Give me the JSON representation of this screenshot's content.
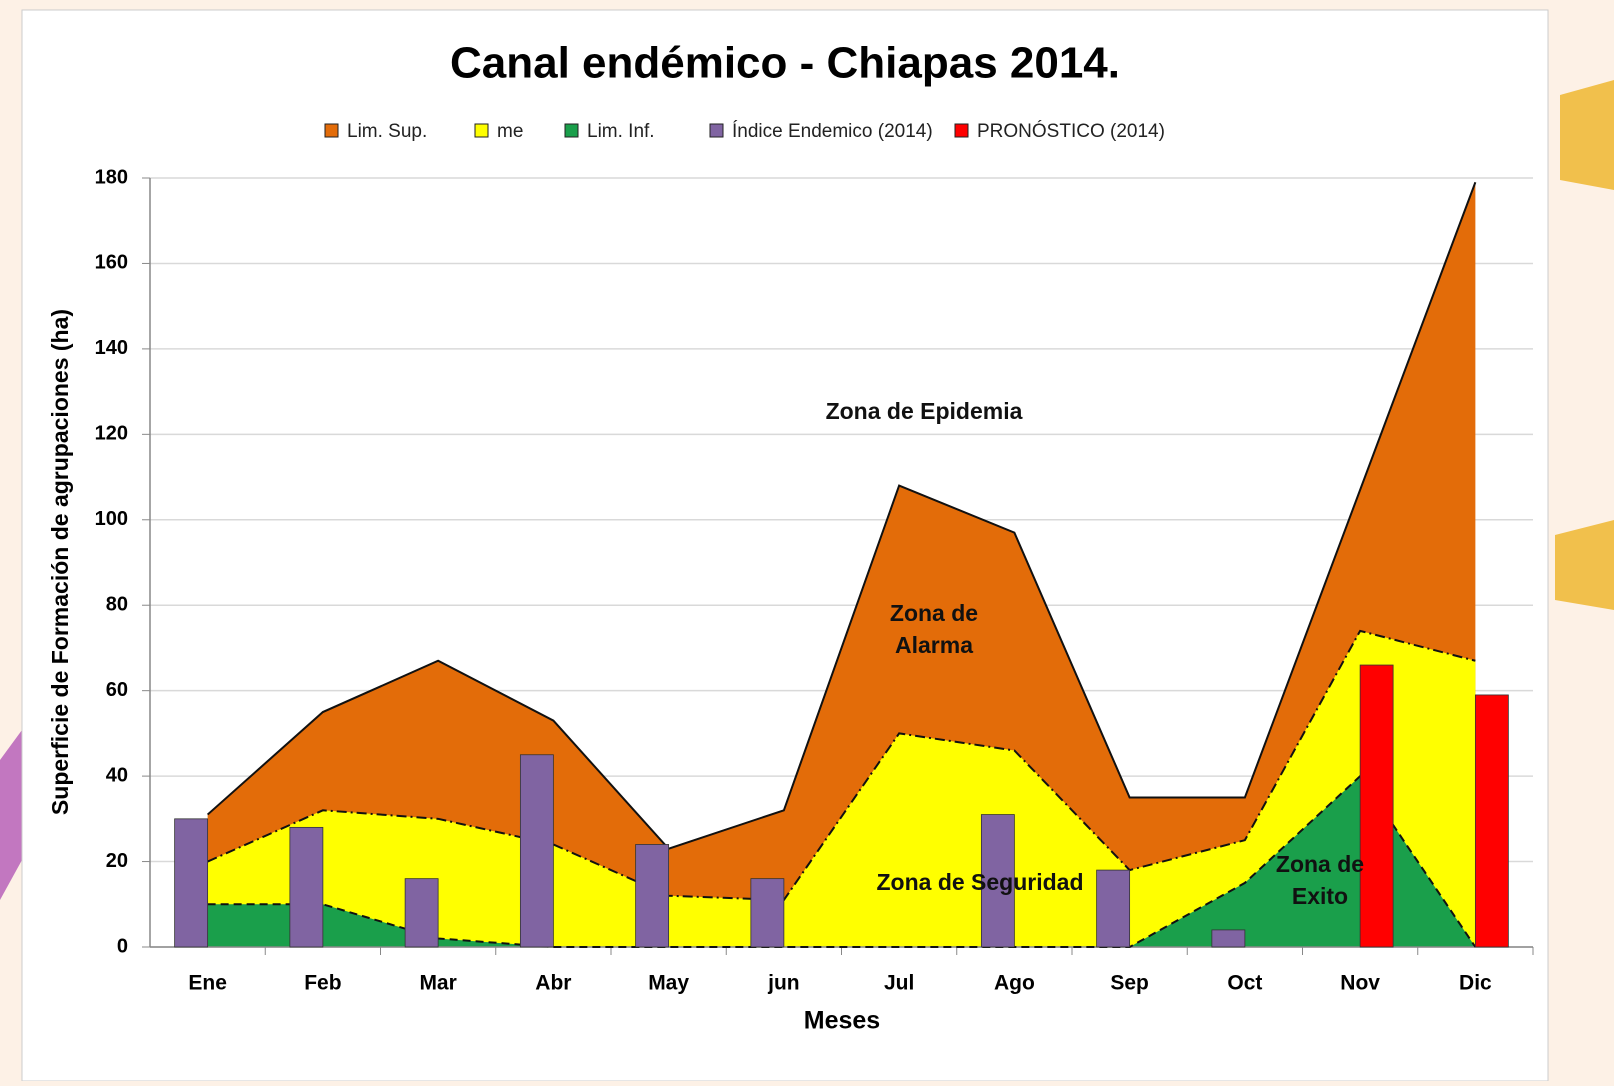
{
  "chart_data": {
    "type": "area-bar",
    "title": "Canal endémico - Chiapas 2014.",
    "x_label": "Meses",
    "y_label": "Superficie de Formación de agrupaciones (ha)",
    "categories": [
      "Ene",
      "Feb",
      "Mar",
      "Abr",
      "May",
      "jun",
      "Jul",
      "Ago",
      "Sep",
      "Oct",
      "Nov",
      "Dic"
    ],
    "series": [
      {
        "name": "Lim. Sup.",
        "kind": "area",
        "color": "#e36c09",
        "line": "solid",
        "values": [
          31,
          55,
          67,
          53,
          23,
          32,
          108,
          97,
          35,
          35,
          107,
          179
        ]
      },
      {
        "name": "me",
        "kind": "area",
        "color": "#ffff00",
        "line": "dashdot",
        "values": [
          20,
          32,
          30,
          24,
          12,
          11,
          50,
          46,
          18,
          25,
          74,
          67
        ]
      },
      {
        "name": "Lim. Inf.",
        "kind": "area",
        "color": "#1a9f4b",
        "line": "dash",
        "values": [
          10,
          10,
          2,
          0,
          0,
          0,
          0,
          0,
          0,
          15,
          40,
          0
        ]
      },
      {
        "name": "Índice Endemico (2014)",
        "kind": "bar",
        "color": "#8064a2",
        "values": [
          30,
          28,
          16,
          45,
          24,
          16,
          null,
          31,
          18,
          4,
          null,
          null
        ]
      },
      {
        "name": "PRONÓSTICO (2014)",
        "kind": "bar",
        "color": "#ff0000",
        "values": [
          null,
          null,
          null,
          null,
          null,
          null,
          null,
          null,
          null,
          null,
          66,
          59
        ]
      }
    ],
    "annotations": [
      [
        "Zona de Epidemia"
      ],
      [
        "Zona de",
        "Alarma"
      ],
      [
        "Zona de Seguridad"
      ],
      [
        "Zona de",
        "Exito"
      ]
    ],
    "ylim": [
      0,
      180
    ],
    "yticks": [
      0,
      20,
      40,
      60,
      80,
      100,
      120,
      140,
      160,
      180
    ],
    "grid": true,
    "legend": "top"
  }
}
